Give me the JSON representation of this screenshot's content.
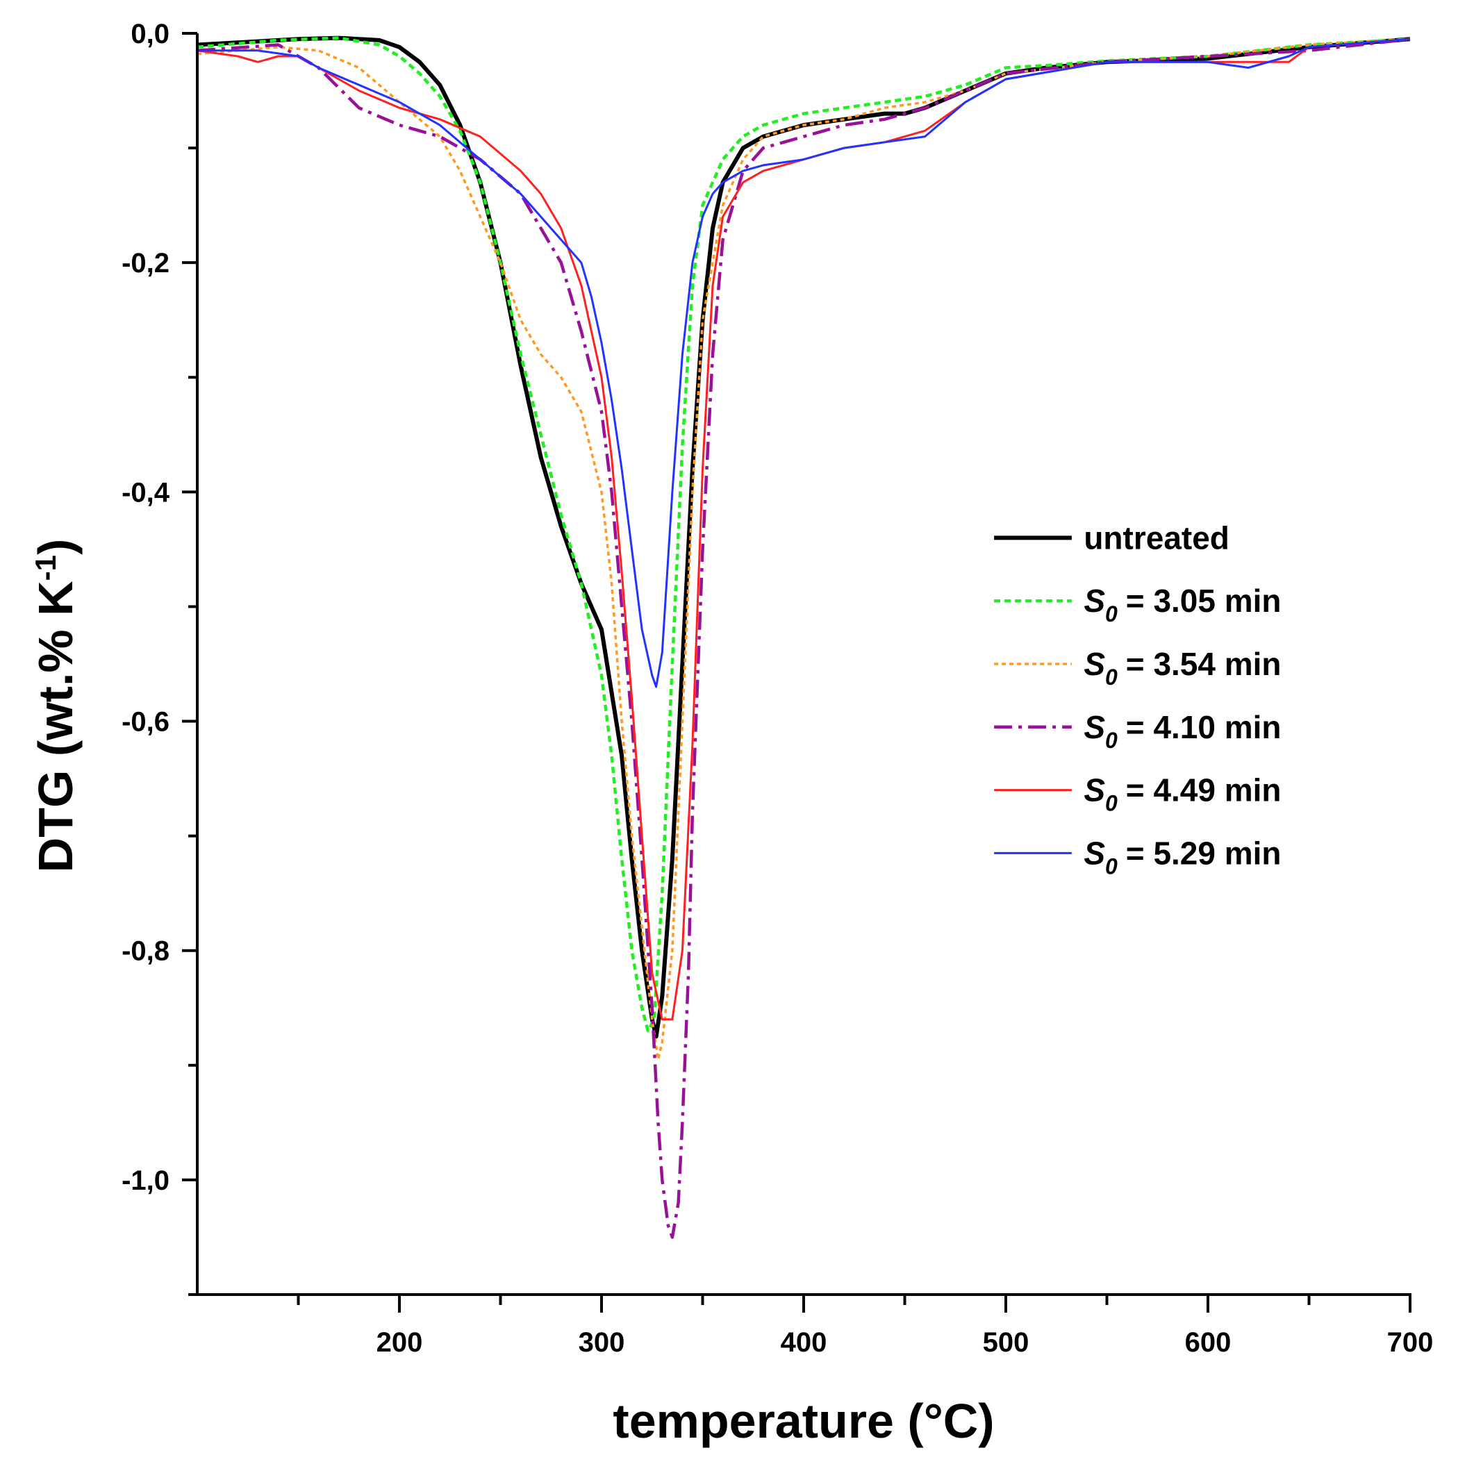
{
  "chart_data": {
    "type": "line",
    "xlabel": "temperature (°C)",
    "ylabel": "DTG (wt.% K",
    "ylabel_superscript": "-1",
    "ylabel_close": ")",
    "xlim": [
      100,
      700
    ],
    "ylim": [
      -1.1,
      0.0
    ],
    "xticks": [
      200,
      300,
      400,
      500,
      600,
      700
    ],
    "xtick_labels": [
      "200",
      "300",
      "400",
      "500",
      "600",
      "700"
    ],
    "yticks": [
      0.0,
      -0.2,
      -0.4,
      -0.6,
      -0.8,
      -1.0
    ],
    "ytick_labels": [
      "0,0",
      "-0,2",
      "-0,4",
      "-0,6",
      "-0,8",
      "-1,0"
    ],
    "legend_position": "right-center",
    "series": [
      {
        "name": "untreated",
        "name_prefix": "",
        "name_sub": "",
        "color": "#000000",
        "dash": "solid",
        "width": 6,
        "x": [
          100,
          150,
          170,
          190,
          200,
          210,
          220,
          230,
          240,
          250,
          260,
          270,
          280,
          290,
          300,
          310,
          315,
          320,
          325,
          327,
          330,
          335,
          340,
          345,
          350,
          355,
          360,
          370,
          380,
          400,
          420,
          440,
          450,
          460,
          480,
          500,
          520,
          550,
          600,
          650,
          700
        ],
        "y": [
          -0.01,
          -0.005,
          -0.004,
          -0.006,
          -0.012,
          -0.025,
          -0.045,
          -0.08,
          -0.13,
          -0.2,
          -0.29,
          -0.37,
          -0.43,
          -0.48,
          -0.52,
          -0.63,
          -0.72,
          -0.8,
          -0.86,
          -0.875,
          -0.84,
          -0.72,
          -0.55,
          -0.38,
          -0.25,
          -0.17,
          -0.13,
          -0.1,
          -0.09,
          -0.08,
          -0.075,
          -0.07,
          -0.07,
          -0.065,
          -0.05,
          -0.035,
          -0.03,
          -0.025,
          -0.022,
          -0.012,
          -0.005
        ]
      },
      {
        "name": "= 3.05 min",
        "name_prefix": "S",
        "name_sub": "0",
        "color": "#22ee22",
        "dash": "9 6",
        "width": 4.5,
        "x": [
          100,
          140,
          170,
          190,
          200,
          210,
          220,
          230,
          240,
          250,
          260,
          270,
          280,
          290,
          300,
          305,
          310,
          315,
          320,
          323,
          326,
          330,
          335,
          340,
          345,
          350,
          360,
          370,
          380,
          390,
          400,
          420,
          440,
          460,
          480,
          500,
          520,
          550,
          600,
          650,
          700
        ],
        "y": [
          -0.012,
          -0.006,
          -0.004,
          -0.01,
          -0.02,
          -0.035,
          -0.055,
          -0.085,
          -0.13,
          -0.2,
          -0.28,
          -0.35,
          -0.42,
          -0.48,
          -0.56,
          -0.63,
          -0.72,
          -0.8,
          -0.85,
          -0.87,
          -0.86,
          -0.75,
          -0.55,
          -0.36,
          -0.22,
          -0.15,
          -0.11,
          -0.09,
          -0.08,
          -0.075,
          -0.07,
          -0.065,
          -0.06,
          -0.055,
          -0.045,
          -0.03,
          -0.028,
          -0.024,
          -0.02,
          -0.01,
          -0.005
        ]
      },
      {
        "name": "= 3.54 min",
        "name_prefix": "S",
        "name_sub": "0",
        "color": "#ff9922",
        "dash": "6 5",
        "width": 3.5,
        "x": [
          100,
          140,
          160,
          180,
          200,
          220,
          230,
          240,
          250,
          260,
          270,
          280,
          290,
          300,
          305,
          310,
          315,
          320,
          325,
          328,
          330,
          335,
          340,
          345,
          350,
          360,
          370,
          380,
          400,
          420,
          440,
          460,
          480,
          500,
          550,
          600,
          650,
          700
        ],
        "y": [
          -0.018,
          -0.012,
          -0.015,
          -0.03,
          -0.06,
          -0.09,
          -0.12,
          -0.16,
          -0.2,
          -0.25,
          -0.28,
          -0.3,
          -0.33,
          -0.4,
          -0.48,
          -0.6,
          -0.7,
          -0.78,
          -0.86,
          -0.895,
          -0.88,
          -0.8,
          -0.6,
          -0.4,
          -0.25,
          -0.15,
          -0.11,
          -0.09,
          -0.08,
          -0.075,
          -0.065,
          -0.06,
          -0.05,
          -0.035,
          -0.025,
          -0.02,
          -0.01,
          -0.005
        ]
      },
      {
        "name": "= 4.10 min",
        "name_prefix": "S",
        "name_sub": "0",
        "color": "#991199",
        "dash": "26 9 5 9",
        "width": 4.5,
        "x": [
          100,
          140,
          160,
          180,
          200,
          220,
          240,
          260,
          270,
          280,
          290,
          300,
          305,
          310,
          315,
          320,
          325,
          328,
          330,
          333,
          335,
          338,
          340,
          343,
          345,
          350,
          355,
          360,
          370,
          380,
          400,
          420,
          440,
          460,
          480,
          500,
          550,
          600,
          650,
          700
        ],
        "y": [
          -0.015,
          -0.01,
          -0.03,
          -0.065,
          -0.08,
          -0.09,
          -0.11,
          -0.14,
          -0.17,
          -0.2,
          -0.26,
          -0.33,
          -0.4,
          -0.5,
          -0.6,
          -0.72,
          -0.85,
          -0.95,
          -1.0,
          -1.04,
          -1.05,
          -1.02,
          -0.95,
          -0.82,
          -0.68,
          -0.45,
          -0.28,
          -0.18,
          -0.12,
          -0.1,
          -0.09,
          -0.08,
          -0.075,
          -0.065,
          -0.05,
          -0.035,
          -0.025,
          -0.02,
          -0.015,
          -0.005
        ]
      },
      {
        "name": "= 4.49 min",
        "name_prefix": "S",
        "name_sub": "0",
        "color": "#ff2020",
        "dash": "solid",
        "width": 3,
        "x": [
          100,
          120,
          130,
          140,
          150,
          160,
          170,
          180,
          200,
          220,
          240,
          260,
          270,
          280,
          290,
          300,
          305,
          310,
          315,
          320,
          325,
          330,
          335,
          340,
          345,
          350,
          355,
          360,
          370,
          380,
          400,
          420,
          440,
          460,
          480,
          500,
          550,
          600,
          640,
          650,
          700
        ],
        "y": [
          -0.015,
          -0.02,
          -0.025,
          -0.02,
          -0.02,
          -0.03,
          -0.04,
          -0.05,
          -0.065,
          -0.075,
          -0.09,
          -0.12,
          -0.14,
          -0.17,
          -0.22,
          -0.3,
          -0.37,
          -0.47,
          -0.58,
          -0.7,
          -0.82,
          -0.86,
          -0.86,
          -0.8,
          -0.62,
          -0.38,
          -0.22,
          -0.16,
          -0.13,
          -0.12,
          -0.11,
          -0.1,
          -0.095,
          -0.085,
          -0.06,
          -0.04,
          -0.025,
          -0.025,
          -0.025,
          -0.012,
          -0.005
        ]
      },
      {
        "name": "= 5.29 min",
        "name_prefix": "S",
        "name_sub": "0",
        "color": "#2233ff",
        "dash": "solid",
        "width": 3,
        "x": [
          100,
          130,
          150,
          160,
          180,
          200,
          220,
          240,
          260,
          270,
          280,
          290,
          295,
          300,
          305,
          310,
          315,
          320,
          325,
          327,
          330,
          335,
          340,
          345,
          350,
          355,
          360,
          370,
          380,
          400,
          420,
          440,
          460,
          480,
          500,
          550,
          600,
          620,
          640,
          650,
          700
        ],
        "y": [
          -0.015,
          -0.015,
          -0.02,
          -0.03,
          -0.045,
          -0.06,
          -0.08,
          -0.11,
          -0.14,
          -0.16,
          -0.18,
          -0.2,
          -0.23,
          -0.27,
          -0.32,
          -0.38,
          -0.45,
          -0.52,
          -0.56,
          -0.57,
          -0.54,
          -0.4,
          -0.28,
          -0.2,
          -0.16,
          -0.14,
          -0.13,
          -0.12,
          -0.115,
          -0.11,
          -0.1,
          -0.095,
          -0.09,
          -0.06,
          -0.04,
          -0.025,
          -0.025,
          -0.03,
          -0.02,
          -0.012,
          -0.005
        ]
      }
    ]
  }
}
